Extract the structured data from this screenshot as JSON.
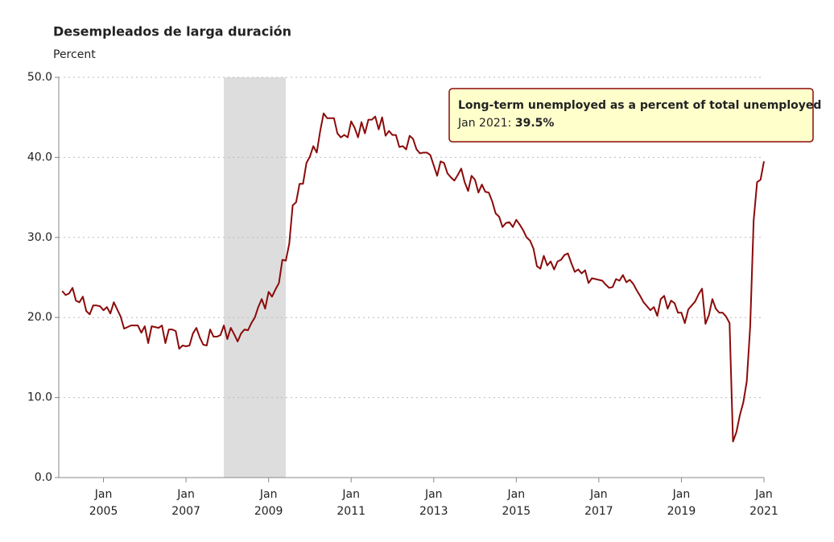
{
  "chart_data": {
    "type": "line",
    "title": "Desempleados de larga duración",
    "subtitle": "Percent",
    "x": [
      "2004-01",
      "2004-02",
      "2004-03",
      "2004-04",
      "2004-05",
      "2004-06",
      "2004-07",
      "2004-08",
      "2004-09",
      "2004-10",
      "2004-11",
      "2004-12",
      "2005-01",
      "2005-02",
      "2005-03",
      "2005-04",
      "2005-05",
      "2005-06",
      "2005-07",
      "2005-08",
      "2005-09",
      "2005-10",
      "2005-11",
      "2005-12",
      "2006-01",
      "2006-02",
      "2006-03",
      "2006-04",
      "2006-05",
      "2006-06",
      "2006-07",
      "2006-08",
      "2006-09",
      "2006-10",
      "2006-11",
      "2006-12",
      "2007-01",
      "2007-02",
      "2007-03",
      "2007-04",
      "2007-05",
      "2007-06",
      "2007-07",
      "2007-08",
      "2007-09",
      "2007-10",
      "2007-11",
      "2007-12",
      "2008-01",
      "2008-02",
      "2008-03",
      "2008-04",
      "2008-05",
      "2008-06",
      "2008-07",
      "2008-08",
      "2008-09",
      "2008-10",
      "2008-11",
      "2008-12",
      "2009-01",
      "2009-02",
      "2009-03",
      "2009-04",
      "2009-05",
      "2009-06",
      "2009-07",
      "2009-08",
      "2009-09",
      "2009-10",
      "2009-11",
      "2009-12",
      "2010-01",
      "2010-02",
      "2010-03",
      "2010-04",
      "2010-05",
      "2010-06",
      "2010-07",
      "2010-08",
      "2010-09",
      "2010-10",
      "2010-11",
      "2010-12",
      "2011-01",
      "2011-02",
      "2011-03",
      "2011-04",
      "2011-05",
      "2011-06",
      "2011-07",
      "2011-08",
      "2011-09",
      "2011-10",
      "2011-11",
      "2011-12",
      "2012-01",
      "2012-02",
      "2012-03",
      "2012-04",
      "2012-05",
      "2012-06",
      "2012-07",
      "2012-08",
      "2012-09",
      "2012-10",
      "2012-11",
      "2012-12",
      "2013-01",
      "2013-02",
      "2013-03",
      "2013-04",
      "2013-05",
      "2013-06",
      "2013-07",
      "2013-08",
      "2013-09",
      "2013-10",
      "2013-11",
      "2013-12",
      "2014-01",
      "2014-02",
      "2014-03",
      "2014-04",
      "2014-05",
      "2014-06",
      "2014-07",
      "2014-08",
      "2014-09",
      "2014-10",
      "2014-11",
      "2014-12",
      "2015-01",
      "2015-02",
      "2015-03",
      "2015-04",
      "2015-05",
      "2015-06",
      "2015-07",
      "2015-08",
      "2015-09",
      "2015-10",
      "2015-11",
      "2015-12",
      "2016-01",
      "2016-02",
      "2016-03",
      "2016-04",
      "2016-05",
      "2016-06",
      "2016-07",
      "2016-08",
      "2016-09",
      "2016-10",
      "2016-11",
      "2016-12",
      "2017-01",
      "2017-02",
      "2017-03",
      "2017-04",
      "2017-05",
      "2017-06",
      "2017-07",
      "2017-08",
      "2017-09",
      "2017-10",
      "2017-11",
      "2017-12",
      "2018-01",
      "2018-02",
      "2018-03",
      "2018-04",
      "2018-05",
      "2018-06",
      "2018-07",
      "2018-08",
      "2018-09",
      "2018-10",
      "2018-11",
      "2018-12",
      "2019-01",
      "2019-02",
      "2019-03",
      "2019-04",
      "2019-05",
      "2019-06",
      "2019-07",
      "2019-08",
      "2019-09",
      "2019-10",
      "2019-11",
      "2019-12",
      "2020-01",
      "2020-02",
      "2020-03",
      "2020-04",
      "2020-05",
      "2020-06",
      "2020-07",
      "2020-08",
      "2020-09",
      "2020-10",
      "2020-11",
      "2020-12",
      "2021-01"
    ],
    "series": [
      {
        "name": "Long-term unemployed as a percent of total unemployed",
        "color": "#8b0a0a",
        "values": [
          23.3,
          22.8,
          23.0,
          23.7,
          22.1,
          21.9,
          22.6,
          20.8,
          20.4,
          21.5,
          21.5,
          21.4,
          20.9,
          21.3,
          20.5,
          21.9,
          21.0,
          20.1,
          18.6,
          18.8,
          19.0,
          19.0,
          19.0,
          18.1,
          18.9,
          16.8,
          18.9,
          18.8,
          18.7,
          19.0,
          16.8,
          18.5,
          18.5,
          18.3,
          16.1,
          16.5,
          16.4,
          16.5,
          18.0,
          18.7,
          17.5,
          16.6,
          16.5,
          18.5,
          17.6,
          17.6,
          17.8,
          19.0,
          17.3,
          18.7,
          17.9,
          17.0,
          18.0,
          18.5,
          18.4,
          19.3,
          20.0,
          21.3,
          22.3,
          21.1,
          23.2,
          22.6,
          23.5,
          24.3,
          27.2,
          27.1,
          29.2,
          34.0,
          34.4,
          36.7,
          36.7,
          39.3,
          40.1,
          41.4,
          40.6,
          43.3,
          45.5,
          44.9,
          44.9,
          44.9,
          43.0,
          42.5,
          42.8,
          42.5,
          44.5,
          43.7,
          42.5,
          44.4,
          43.0,
          44.7,
          44.7,
          45.1,
          43.5,
          45.0,
          42.7,
          43.3,
          42.8,
          42.8,
          41.3,
          41.4,
          41.0,
          42.7,
          42.3,
          41.0,
          40.5,
          40.6,
          40.6,
          40.3,
          39.0,
          37.7,
          39.5,
          39.3,
          38.0,
          37.5,
          37.1,
          37.8,
          38.6,
          36.9,
          35.8,
          37.7,
          37.2,
          35.6,
          36.6,
          35.7,
          35.6,
          34.5,
          33.0,
          32.6,
          31.3,
          31.8,
          31.9,
          31.3,
          32.2,
          31.6,
          30.9,
          30.0,
          29.6,
          28.6,
          26.4,
          26.1,
          27.7,
          26.5,
          27.0,
          26.0,
          27.0,
          27.2,
          27.8,
          28.0,
          26.8,
          25.7,
          26.0,
          25.5,
          25.9,
          24.3,
          24.9,
          24.8,
          24.7,
          24.6,
          24.1,
          23.7,
          23.8,
          24.8,
          24.6,
          25.3,
          24.4,
          24.7,
          24.2,
          23.4,
          22.7,
          21.9,
          21.4,
          20.9,
          21.3,
          20.2,
          22.3,
          22.7,
          21.1,
          22.1,
          21.8,
          20.6,
          20.6,
          19.3,
          21.0,
          21.5,
          22.0,
          22.9,
          23.6,
          19.2,
          20.3,
          22.3,
          21.1,
          20.6,
          20.6,
          20.1,
          19.3,
          4.5,
          5.7,
          7.8,
          9.4,
          12.0,
          18.9,
          32.1,
          36.9,
          37.2,
          39.5
        ]
      }
    ],
    "xlim": [
      "2003-12",
      "2021-01"
    ],
    "xticks": [
      {
        "value": "2005-01",
        "month": "Jan",
        "year": "2005"
      },
      {
        "value": "2007-01",
        "month": "Jan",
        "year": "2007"
      },
      {
        "value": "2009-01",
        "month": "Jan",
        "year": "2009"
      },
      {
        "value": "2011-01",
        "month": "Jan",
        "year": "2011"
      },
      {
        "value": "2013-01",
        "month": "Jan",
        "year": "2013"
      },
      {
        "value": "2015-01",
        "month": "Jan",
        "year": "2015"
      },
      {
        "value": "2017-01",
        "month": "Jan",
        "year": "2017"
      },
      {
        "value": "2019-01",
        "month": "Jan",
        "year": "2019"
      },
      {
        "value": "2021-01",
        "month": "Jan",
        "year": "2021"
      }
    ],
    "ylim": [
      0,
      50
    ],
    "yticks": [
      {
        "value": 0,
        "label": "0.0"
      },
      {
        "value": 10,
        "label": "10.0"
      },
      {
        "value": 20,
        "label": "20.0"
      },
      {
        "value": 30,
        "label": "30.0"
      },
      {
        "value": 40,
        "label": "40.0"
      },
      {
        "value": 50,
        "label": "50.0"
      }
    ],
    "grid": true,
    "shading": [
      {
        "start": "2007-12",
        "end": "2009-06",
        "color": "#dddddd"
      }
    ],
    "tooltip": {
      "date": "Jan 2021:",
      "value": 39.5,
      "value_label": "39.5%"
    }
  }
}
